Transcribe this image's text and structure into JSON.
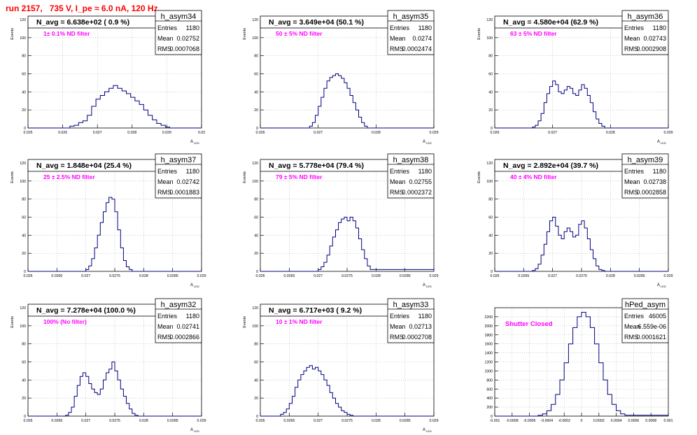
{
  "page": {
    "title": "run 2157,   735 V, I_pe ≈ 6.0 nA, 120 Hz"
  },
  "colors": {
    "hist_line": "#000080",
    "grid": "#b0b0b0",
    "annotation": "#ff00ff",
    "title": "#ff0000",
    "text": "#000000"
  },
  "chart_data": [
    {
      "type": "histogram",
      "name": "h_asym34",
      "stats": {
        "entries": "1180",
        "mean": "0.02752",
        "rms": "0.0007068"
      },
      "navg_label": "N_avg = 6.638e+02 ( 0.9 %)",
      "filter_label": "1± 0.1% ND filter",
      "xlabel": "A",
      "xlabel_sub": "LED",
      "ylabel": "Events",
      "xlim": [
        0.0245,
        0.0305
      ],
      "ylim": [
        0,
        120
      ],
      "xticks": [
        "0.025",
        "0.026",
        "0.027",
        "0.028",
        "0.029",
        "0.03"
      ],
      "yticks": [
        "0",
        "20",
        "40",
        "60",
        "80",
        "100",
        "120"
      ],
      "x": [
        0.0245,
        0.0258,
        0.02595,
        0.0261,
        0.02625,
        0.0264,
        0.02655,
        0.0267,
        0.02685,
        0.027,
        0.02715,
        0.0273,
        0.02745,
        0.0276,
        0.02775,
        0.0279,
        0.02805,
        0.0282,
        0.02835,
        0.0285,
        0.02865,
        0.0288,
        0.02895,
        0.0291,
        0.02925,
        0.0294,
        0.0305
      ],
      "y": [
        0,
        0,
        2,
        3,
        6,
        8,
        14,
        24,
        32,
        36,
        40,
        44,
        47,
        44,
        41,
        38,
        34,
        30,
        26,
        20,
        14,
        9,
        5,
        3,
        1,
        0,
        0
      ]
    },
    {
      "type": "histogram",
      "name": "h_asym35",
      "stats": {
        "entries": "1180",
        "mean": "0.0274",
        "rms": "0.0002474"
      },
      "navg_label": "N_avg = 3.649e+04 (50.1 %)",
      "filter_label": "50 ± 5% ND filter",
      "xlabel": "A",
      "xlabel_sub": "LED",
      "ylabel": "Events",
      "xlim": [
        0.026,
        0.029
      ],
      "ylim": [
        0,
        120
      ],
      "xticks": [
        "0.026",
        "0.027",
        "0.028",
        "0.029"
      ],
      "yticks": [
        "0",
        "20",
        "40",
        "60",
        "80",
        "100",
        "120"
      ],
      "x": [
        0.026,
        0.0268,
        0.02685,
        0.0269,
        0.02695,
        0.027,
        0.02705,
        0.0271,
        0.02715,
        0.0272,
        0.02725,
        0.0273,
        0.02735,
        0.0274,
        0.02745,
        0.0275,
        0.02755,
        0.0276,
        0.02765,
        0.0277,
        0.02775,
        0.0278,
        0.02785,
        0.029
      ],
      "y": [
        0,
        0,
        2,
        6,
        14,
        24,
        34,
        44,
        52,
        56,
        58,
        60,
        58,
        55,
        50,
        44,
        36,
        28,
        20,
        12,
        6,
        2,
        0,
        0
      ]
    },
    {
      "type": "histogram",
      "name": "h_asym36",
      "stats": {
        "entries": "1180",
        "mean": "0.02743",
        "rms": "0.0002908"
      },
      "navg_label": "N_avg = 4.580e+04 (62.9 %)",
      "filter_label": "63 ± 5% ND filter",
      "xlabel": "A",
      "xlabel_sub": "LED",
      "ylabel": "Events",
      "xlim": [
        0.026,
        0.029
      ],
      "ylim": [
        0,
        120
      ],
      "xticks": [
        "0.026",
        "0.027",
        "0.028",
        "0.029"
      ],
      "yticks": [
        "0",
        "20",
        "40",
        "60",
        "80",
        "100",
        "120"
      ],
      "x": [
        0.026,
        0.0266,
        0.02665,
        0.0267,
        0.02675,
        0.0268,
        0.02685,
        0.0269,
        0.02695,
        0.027,
        0.02705,
        0.0271,
        0.02715,
        0.0272,
        0.02725,
        0.0273,
        0.02735,
        0.0274,
        0.02745,
        0.0275,
        0.02755,
        0.0276,
        0.02765,
        0.0277,
        0.02775,
        0.0278,
        0.02785,
        0.0279,
        0.029
      ],
      "y": [
        0,
        0,
        1,
        3,
        8,
        16,
        28,
        38,
        46,
        52,
        48,
        40,
        38,
        42,
        46,
        44,
        38,
        36,
        42,
        48,
        44,
        36,
        28,
        18,
        10,
        5,
        2,
        0,
        0
      ]
    },
    {
      "type": "histogram",
      "name": "h_asym37",
      "stats": {
        "entries": "1180",
        "mean": "0.02742",
        "rms": "0.0001883"
      },
      "navg_label": "N_avg = 1.848e+04 (25.4 %)",
      "filter_label": "25 ± 2.5% ND filter",
      "xlabel": "A",
      "xlabel_sub": "LED",
      "ylabel": "Events",
      "xlim": [
        0.026,
        0.029
      ],
      "ylim": [
        0,
        120
      ],
      "xticks": [
        "0.026",
        "0.0265",
        "0.027",
        "0.0275",
        "0.028",
        "0.0285",
        "0.029"
      ],
      "yticks": [
        "0",
        "20",
        "40",
        "60",
        "80",
        "100",
        "120"
      ],
      "x": [
        0.026,
        0.02695,
        0.027,
        0.02705,
        0.0271,
        0.02715,
        0.0272,
        0.02725,
        0.0273,
        0.02735,
        0.0274,
        0.02745,
        0.0275,
        0.02755,
        0.0276,
        0.02765,
        0.0277,
        0.02775,
        0.0278,
        0.029
      ],
      "y": [
        0,
        0,
        2,
        6,
        14,
        26,
        40,
        54,
        66,
        76,
        82,
        80,
        66,
        46,
        26,
        12,
        5,
        2,
        0,
        0
      ]
    },
    {
      "type": "histogram",
      "name": "h_asym38",
      "stats": {
        "entries": "1180",
        "mean": "0.02755",
        "rms": "0.0002372"
      },
      "navg_label": "N_avg = 5.778e+04 (79.4 %)",
      "filter_label": "79 ± 5% ND filter",
      "xlabel": "A",
      "xlabel_sub": "LED",
      "ylabel": "Events",
      "xlim": [
        0.026,
        0.029
      ],
      "ylim": [
        0,
        120
      ],
      "xticks": [
        "0.026",
        "0.0265",
        "0.027",
        "0.0275",
        "0.028",
        "0.0285",
        "0.029"
      ],
      "yticks": [
        "0",
        "20",
        "40",
        "60",
        "80",
        "100",
        "120"
      ],
      "x": [
        0.026,
        0.02695,
        0.027,
        0.02705,
        0.0271,
        0.02715,
        0.0272,
        0.02725,
        0.0273,
        0.02735,
        0.0274,
        0.02745,
        0.0275,
        0.02755,
        0.0276,
        0.02765,
        0.0277,
        0.02775,
        0.0278,
        0.02785,
        0.0279,
        0.029
      ],
      "y": [
        0,
        0,
        2,
        5,
        10,
        18,
        28,
        38,
        46,
        54,
        58,
        60,
        56,
        60,
        56,
        48,
        36,
        24,
        14,
        6,
        2,
        0
      ]
    },
    {
      "type": "histogram",
      "name": "h_asym39",
      "stats": {
        "entries": "1180",
        "mean": "0.02738",
        "rms": "0.0002858"
      },
      "navg_label": "N_avg = 2.892e+04 (39.7 %)",
      "filter_label": "40 ± 4% ND filter",
      "xlabel": "A",
      "xlabel_sub": "LED",
      "ylabel": "Events",
      "xlim": [
        0.026,
        0.029
      ],
      "ylim": [
        0,
        120
      ],
      "xticks": [
        "0.026",
        "0.0265",
        "0.027",
        "0.0275",
        "0.028",
        "0.0285",
        "0.029"
      ],
      "yticks": [
        "0",
        "20",
        "40",
        "60",
        "80",
        "100",
        "120"
      ],
      "x": [
        0.026,
        0.0266,
        0.02665,
        0.0267,
        0.02675,
        0.0268,
        0.02685,
        0.0269,
        0.02695,
        0.027,
        0.02705,
        0.0271,
        0.02715,
        0.0272,
        0.02725,
        0.0273,
        0.02735,
        0.0274,
        0.02745,
        0.0275,
        0.02755,
        0.0276,
        0.02765,
        0.0277,
        0.02775,
        0.0278,
        0.02785,
        0.0279,
        0.029
      ],
      "y": [
        0,
        0,
        1,
        3,
        8,
        18,
        30,
        44,
        56,
        60,
        50,
        40,
        36,
        44,
        48,
        44,
        38,
        40,
        52,
        56,
        48,
        36,
        24,
        14,
        6,
        2,
        1,
        0,
        0
      ]
    },
    {
      "type": "histogram",
      "name": "h_asym32",
      "stats": {
        "entries": "1180",
        "mean": "0.02741",
        "rms": "0.0002866"
      },
      "navg_label": "N_avg = 7.278e+04 (100.0 %)",
      "filter_label": "100% (No filter)",
      "xlabel": "A",
      "xlabel_sub": "LED",
      "ylabel": "Events",
      "xlim": [
        0.026,
        0.029
      ],
      "ylim": [
        0,
        120
      ],
      "xticks": [
        "0.026",
        "0.0265",
        "0.027",
        "0.0275",
        "0.028",
        "0.0285",
        "0.029"
      ],
      "yticks": [
        "0",
        "20",
        "40",
        "60",
        "80",
        "100",
        "120"
      ],
      "x": [
        0.026,
        0.0266,
        0.02665,
        0.0267,
        0.02675,
        0.0268,
        0.02685,
        0.0269,
        0.02695,
        0.027,
        0.02705,
        0.0271,
        0.02715,
        0.0272,
        0.02725,
        0.0273,
        0.02735,
        0.0274,
        0.02745,
        0.0275,
        0.02755,
        0.0276,
        0.02765,
        0.0277,
        0.02775,
        0.0278,
        0.02785,
        0.0279,
        0.029
      ],
      "y": [
        0,
        0,
        1,
        4,
        10,
        22,
        34,
        44,
        48,
        44,
        36,
        30,
        26,
        24,
        30,
        40,
        48,
        52,
        60,
        50,
        40,
        30,
        22,
        14,
        8,
        3,
        1,
        0,
        0
      ]
    },
    {
      "type": "histogram",
      "name": "h_asym33",
      "stats": {
        "entries": "1180",
        "mean": "0.02713",
        "rms": "0.0002708"
      },
      "navg_label": "N_avg = 6.717e+03 ( 9.2 %)",
      "filter_label": "10 ± 1% ND filter",
      "xlabel": "A",
      "xlabel_sub": "LED",
      "ylabel": "Events",
      "xlim": [
        0.026,
        0.029
      ],
      "ylim": [
        0,
        120
      ],
      "xticks": [
        "0.026",
        "0.0265",
        "0.027",
        "0.0275",
        "0.028",
        "0.0285",
        "0.029"
      ],
      "yticks": [
        "0",
        "20",
        "40",
        "60",
        "80",
        "100",
        "120"
      ],
      "x": [
        0.026,
        0.0263,
        0.02635,
        0.0264,
        0.02645,
        0.0265,
        0.02655,
        0.0266,
        0.02665,
        0.0267,
        0.02675,
        0.0268,
        0.02685,
        0.0269,
        0.02695,
        0.027,
        0.02705,
        0.0271,
        0.02715,
        0.0272,
        0.02725,
        0.0273,
        0.02735,
        0.0274,
        0.02745,
        0.0275,
        0.02755,
        0.0276,
        0.029
      ],
      "y": [
        0,
        0,
        2,
        4,
        8,
        14,
        22,
        32,
        40,
        46,
        50,
        54,
        56,
        52,
        54,
        50,
        46,
        40,
        34,
        26,
        20,
        14,
        10,
        6,
        4,
        2,
        1,
        0,
        0
      ]
    },
    {
      "type": "histogram",
      "name": "hPed_asym",
      "stats": {
        "entries": "46005",
        "mean": "6.559e-06",
        "rms": "0.0001621"
      },
      "filter_label": "Shutter Closed",
      "ylabel": "",
      "xlim": [
        -0.001,
        0.001
      ],
      "ylim": [
        0,
        2400
      ],
      "xticks": [
        "-0.001",
        "-0.0008",
        "-0.0006",
        "-0.0004",
        "-0.0002",
        "0",
        "0.0002",
        "0.0004",
        "0.0006",
        "0.0008",
        "0.001"
      ],
      "yticks": [
        "0",
        "200",
        "400",
        "600",
        "800",
        "1000",
        "1200",
        "1400",
        "1600",
        "1800",
        "2000",
        "2200"
      ],
      "x": [
        -0.001,
        -0.00055,
        -0.0005,
        -0.00045,
        -0.0004,
        -0.00035,
        -0.0003,
        -0.00025,
        -0.0002,
        -0.00015,
        -0.0001,
        -5e-05,
        0,
        5e-05,
        0.0001,
        0.00015,
        0.0002,
        0.00025,
        0.0003,
        0.00035,
        0.0004,
        0.00045,
        0.0005,
        0.001
      ],
      "y": [
        0,
        0,
        20,
        50,
        120,
        260,
        480,
        800,
        1180,
        1600,
        1960,
        2200,
        2300,
        2200,
        1960,
        1600,
        1180,
        800,
        480,
        260,
        120,
        50,
        20,
        0
      ]
    }
  ]
}
